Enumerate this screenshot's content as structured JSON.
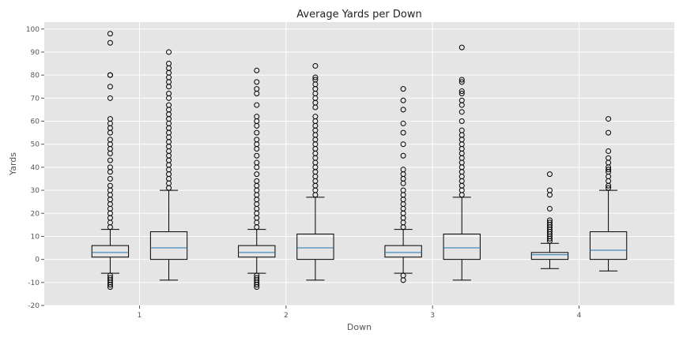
{
  "chart_data": {
    "type": "box",
    "title": "Average Yards per Down",
    "xlabel": "Down",
    "ylabel": "Yards",
    "ylim": [
      -20,
      103
    ],
    "y_ticks": [
      -20,
      -10,
      0,
      10,
      20,
      30,
      40,
      50,
      60,
      70,
      80,
      90,
      100
    ],
    "categories": [
      "1",
      "2",
      "3",
      "4"
    ],
    "grid": true,
    "colors": {
      "plot_background": "#e5e5e5",
      "median": "#1f77b4",
      "box_edge": "#000000",
      "flier_edge": "#000000"
    },
    "groups": [
      {
        "down": "1",
        "boxes": [
          {
            "q1": 1,
            "median": 3,
            "q3": 6,
            "whisker_low": -6,
            "whisker_high": 13,
            "outliers_high": [
              14,
              16,
              18,
              20,
              22,
              24,
              26,
              28,
              30,
              32,
              35,
              38,
              40,
              43,
              46,
              48,
              50,
              52,
              55,
              57,
              59,
              61,
              70,
              75,
              80,
              80,
              94,
              98
            ],
            "outliers_low": [
              -7,
              -8,
              -9,
              -10,
              -11,
              -12
            ]
          },
          {
            "q1": 0,
            "median": 5,
            "q3": 12,
            "whisker_low": -9,
            "whisker_high": 30,
            "outliers_high": [
              31,
              33,
              35,
              37,
              39,
              41,
              43,
              45,
              47,
              49,
              51,
              53,
              55,
              57,
              59,
              61,
              63,
              65,
              67,
              70,
              72,
              75,
              77,
              79,
              81,
              83,
              85,
              90
            ],
            "outliers_low": []
          }
        ]
      },
      {
        "down": "2",
        "boxes": [
          {
            "q1": 1,
            "median": 3,
            "q3": 6,
            "whisker_low": -6,
            "whisker_high": 13,
            "outliers_high": [
              14,
              16,
              18,
              20,
              22,
              24,
              26,
              28,
              30,
              32,
              34,
              37,
              40,
              42,
              45,
              48,
              50,
              52,
              55,
              58,
              60,
              62,
              67,
              72,
              74,
              77,
              82
            ],
            "outliers_low": [
              -7,
              -8,
              -9,
              -10,
              -11,
              -12
            ]
          },
          {
            "q1": 0,
            "median": 5,
            "q3": 11,
            "whisker_low": -9,
            "whisker_high": 27,
            "outliers_high": [
              28,
              30,
              32,
              34,
              36,
              38,
              40,
              42,
              44,
              46,
              48,
              50,
              52,
              54,
              56,
              58,
              60,
              62,
              66,
              68,
              70,
              72,
              74,
              76,
              78,
              79,
              84
            ],
            "outliers_low": []
          }
        ]
      },
      {
        "down": "3",
        "boxes": [
          {
            "q1": 1,
            "median": 3,
            "q3": 6,
            "whisker_low": -6,
            "whisker_high": 13,
            "outliers_high": [
              14,
              16,
              18,
              20,
              22,
              24,
              26,
              28,
              30,
              33,
              35,
              37,
              39,
              45,
              50,
              55,
              59,
              65,
              69,
              74
            ],
            "outliers_low": [
              -7,
              -9
            ]
          },
          {
            "q1": 0,
            "median": 5,
            "q3": 11,
            "whisker_low": -9,
            "whisker_high": 27,
            "outliers_high": [
              28,
              30,
              32,
              34,
              36,
              38,
              40,
              42,
              44,
              46,
              48,
              50,
              52,
              54,
              56,
              60,
              64,
              67,
              69,
              72,
              73,
              77,
              78,
              92
            ],
            "outliers_low": []
          }
        ]
      },
      {
        "down": "4",
        "boxes": [
          {
            "q1": 0,
            "median": 2,
            "q3": 3,
            "whisker_low": -4,
            "whisker_high": 7,
            "outliers_high": [
              8,
              9,
              10,
              11,
              12,
              13,
              14,
              15,
              16,
              17,
              22,
              28,
              30,
              37
            ],
            "outliers_low": []
          },
          {
            "q1": 0,
            "median": 4,
            "q3": 12,
            "whisker_low": -5,
            "whisker_high": 30,
            "outliers_high": [
              31,
              32,
              34,
              36,
              38,
              39,
              40,
              42,
              44,
              47,
              55,
              61
            ],
            "outliers_low": []
          }
        ]
      }
    ]
  }
}
